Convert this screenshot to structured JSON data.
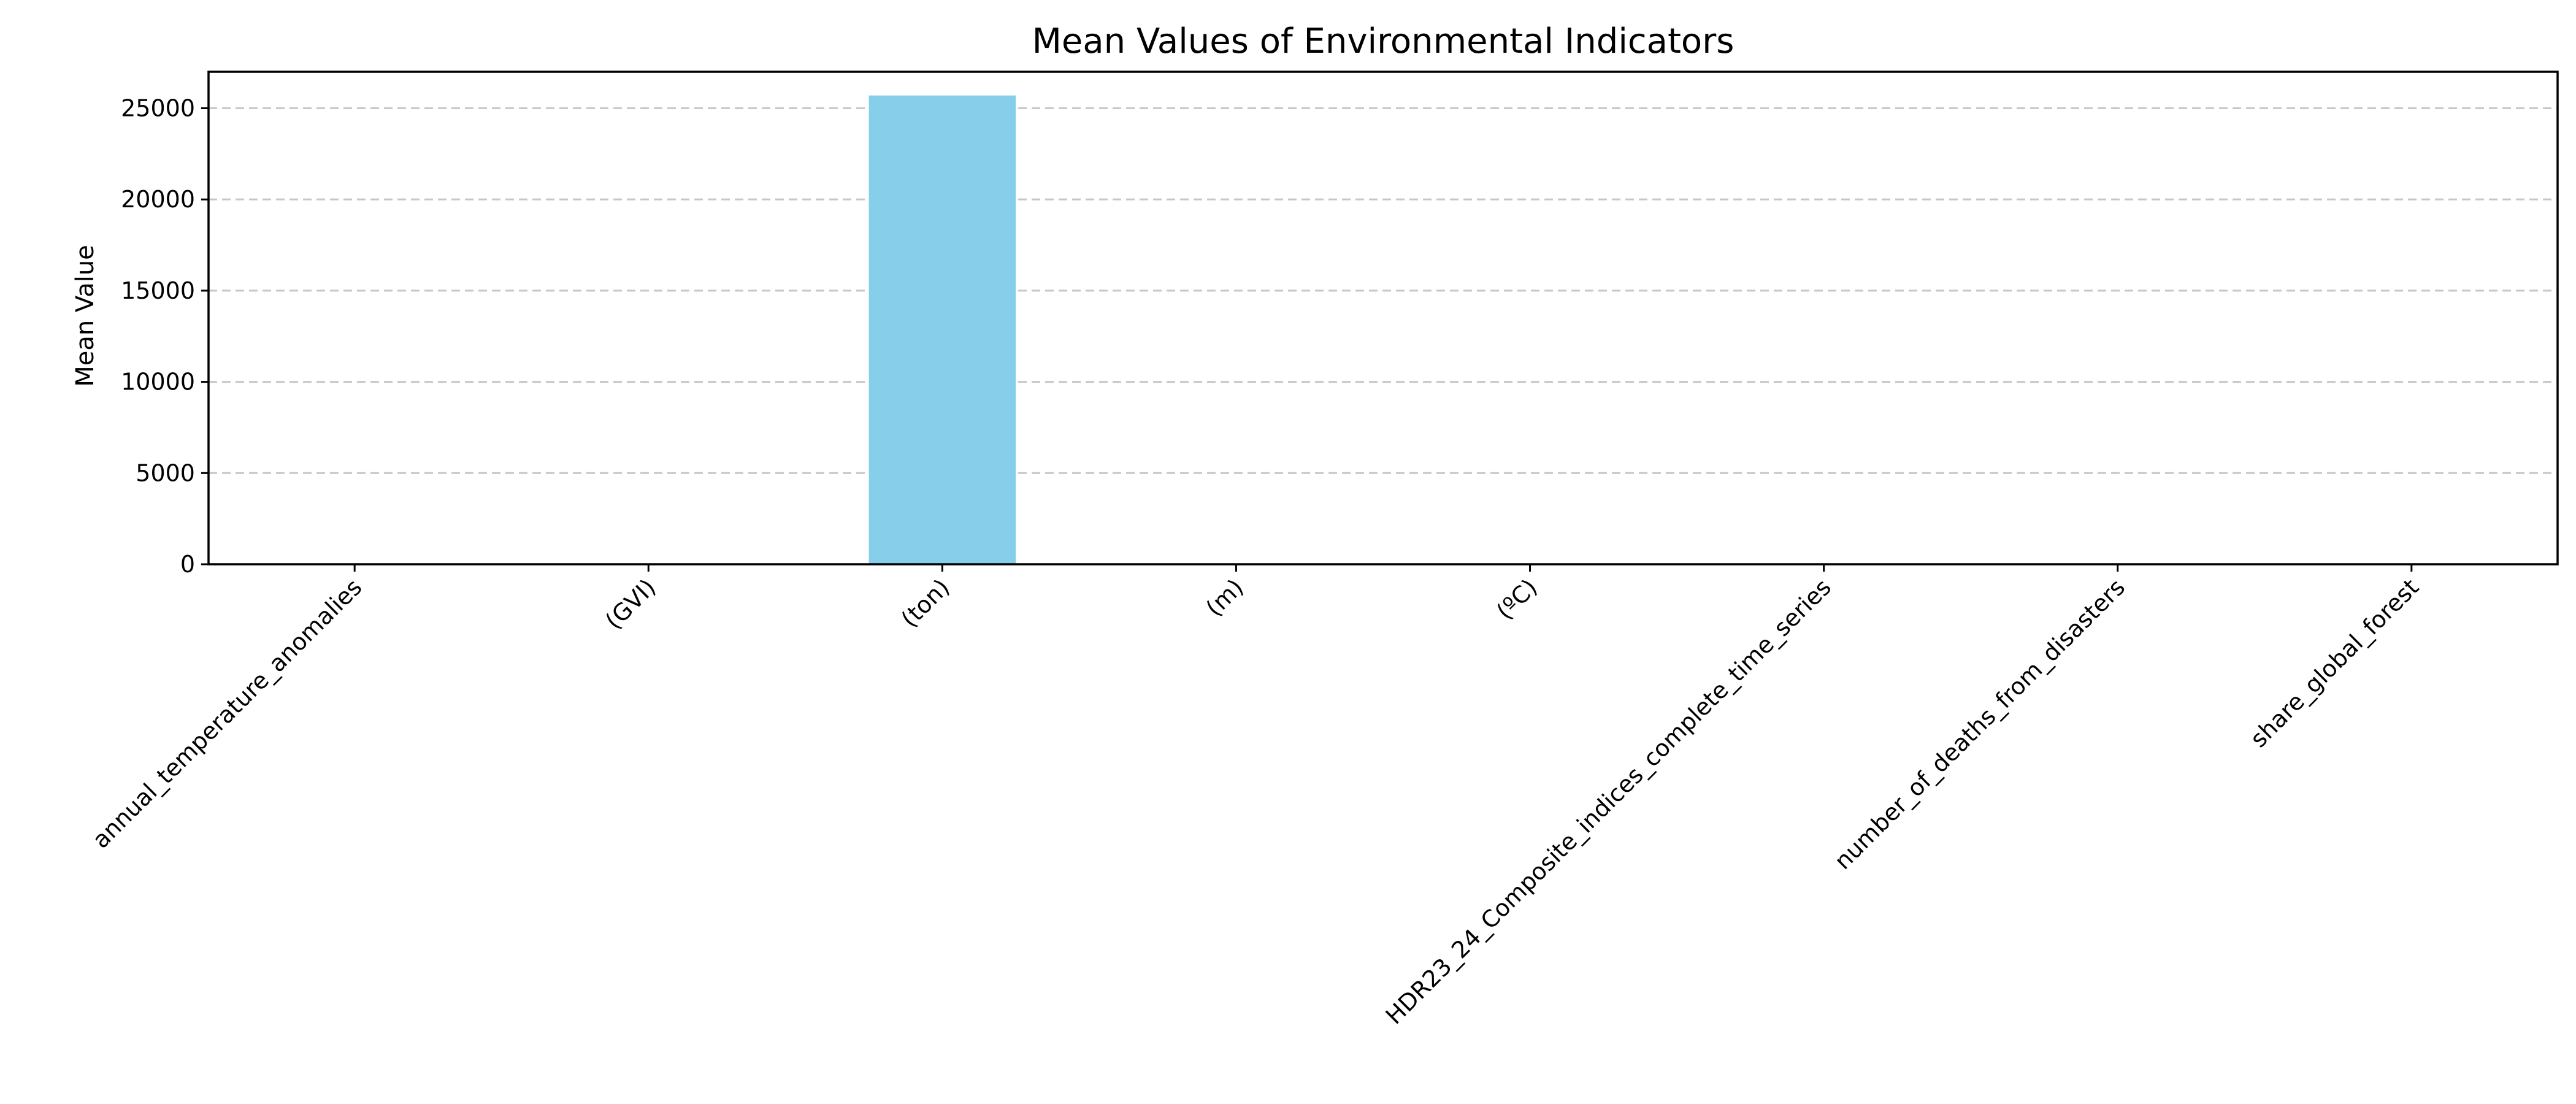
{
  "chart_data": {
    "type": "bar",
    "title": "Mean Values of Environmental Indicators",
    "xlabel": "",
    "ylabel": "Mean Value",
    "categories": [
      "annual_temperature_anomalies",
      "(GVI)",
      "(ton)",
      "(m)",
      "(ºC)",
      "HDR23_24_Composite_indices_complete_time_series",
      "number_of_deaths_from_disasters",
      "share_global_forest"
    ],
    "values": [
      0.5,
      0.4,
      25700,
      3,
      0.6,
      0.7,
      45,
      0.3
    ],
    "ylim": [
      0,
      27000
    ],
    "yticks": [
      0,
      5000,
      10000,
      15000,
      20000,
      25000
    ],
    "grid": "y-dashed",
    "legend": "none",
    "bar_color": "#87CEEB"
  }
}
